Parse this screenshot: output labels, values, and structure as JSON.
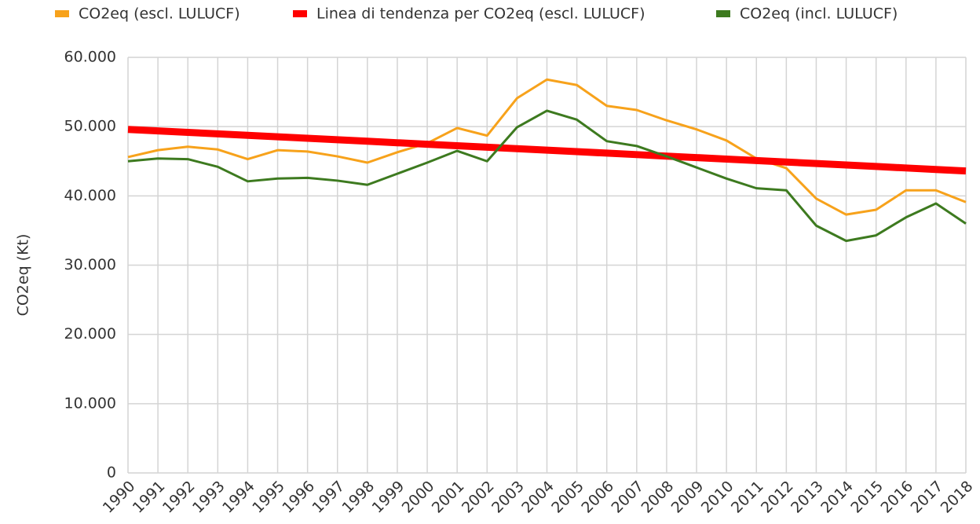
{
  "chart_data": {
    "type": "line",
    "ylabel": "CO2eq (Kt)",
    "categories": [
      "1990",
      "1991",
      "1992",
      "1993",
      "1994",
      "1995",
      "1996",
      "1997",
      "1998",
      "1999",
      "2000",
      "2001",
      "2002",
      "2003",
      "2004",
      "2005",
      "2006",
      "2007",
      "2008",
      "2009",
      "2010",
      "2011",
      "2012",
      "2013",
      "2014",
      "2015",
      "2016",
      "2017",
      "2018"
    ],
    "series": [
      {
        "name": "CO2eq (escl. LULUCF)",
        "color": "#f7a21b",
        "width": 3,
        "values": [
          45600,
          46600,
          47100,
          46700,
          45300,
          46600,
          46400,
          45700,
          44800,
          46300,
          47600,
          49800,
          48700,
          54100,
          56800,
          56000,
          53000,
          52400,
          50900,
          49600,
          48000,
          45400,
          44000,
          39600,
          37300,
          38000,
          40800,
          40800,
          39100
        ]
      },
      {
        "name": "Linea di tendenza per CO2eq (escl. LULUCF)",
        "color": "#ff0000",
        "width": 9,
        "values": [
          49600,
          49386,
          49171,
          48957,
          48743,
          48529,
          48314,
          48100,
          47886,
          47671,
          47457,
          47243,
          47029,
          46814,
          46600,
          46386,
          46171,
          45957,
          45743,
          45529,
          45314,
          45100,
          44886,
          44671,
          44457,
          44243,
          44029,
          43814,
          43600
        ]
      },
      {
        "name": "CO2eq (incl. LULUCF)",
        "color": "#3d7a1f",
        "width": 3,
        "values": [
          45000,
          45400,
          45300,
          44200,
          42100,
          42500,
          42600,
          42200,
          41600,
          43200,
          44800,
          46500,
          45000,
          49900,
          52300,
          51000,
          47900,
          47200,
          45700,
          44100,
          42500,
          41100,
          40800,
          35700,
          33500,
          34300,
          36900,
          38900,
          36000
        ]
      }
    ],
    "ylim": [
      0,
      60000
    ],
    "yticks": [
      0,
      {
        "value": 10000,
        "label": "10.000"
      },
      {
        "value": 20000,
        "label": "20.000"
      },
      {
        "value": 30000,
        "label": "30.000"
      },
      {
        "value": 40000,
        "label": "40.000"
      },
      {
        "value": 50000,
        "label": "50.000"
      },
      {
        "value": 60000,
        "label": "60.000"
      }
    ],
    "grid": true,
    "legend": "top"
  }
}
